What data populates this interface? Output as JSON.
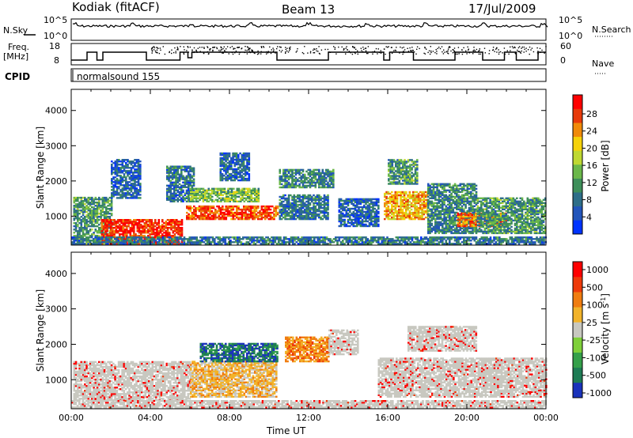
{
  "header": {
    "station": "Kodiak (fitACF)",
    "beam": "Beam 13",
    "date": "17/Jul/2009"
  },
  "top_panels": {
    "nsky_label": "N.Sky",
    "nsearch_label": "N.Search",
    "count_ticks": [
      "10^5",
      "10^0"
    ],
    "freq_label_1": "Freq.",
    "freq_label_2": "[MHz]",
    "freq_ticks": [
      "18",
      "8"
    ],
    "nave_label": "Nave",
    "nave_ticks": [
      "60",
      "0"
    ],
    "cpid_label": "CPID",
    "cpid_value": "normalsound 155"
  },
  "chart_data": [
    {
      "type": "heatmap",
      "name": "power",
      "ylabel": "Slant Range [km]",
      "ylim": [
        180,
        4600
      ],
      "yticks": [
        "4000",
        "3000",
        "2000",
        "1000"
      ],
      "xlim": [
        0,
        24
      ],
      "colorbar_label": "Power [dB]",
      "colorbar_ticks": [
        "28",
        "24",
        "20",
        "16",
        "12",
        "8",
        "4"
      ],
      "colors": [
        "#0033ff",
        "#2255bb",
        "#2e6e88",
        "#3e8f5a",
        "#6bb84a",
        "#bfd832",
        "#f5d20a",
        "#f08a0a",
        "#e83a0a",
        "#ff0000"
      ],
      "echo_regions": [
        {
          "t0": 0.1,
          "t1": 2.0,
          "r0": 200,
          "r1": 1550,
          "level": 0.35
        },
        {
          "t0": 1.5,
          "t1": 5.6,
          "r0": 200,
          "r1": 900,
          "level": 0.9
        },
        {
          "t0": 2.0,
          "t1": 3.5,
          "r0": 1500,
          "r1": 2600,
          "level": 0.2
        },
        {
          "t0": 4.8,
          "t1": 6.2,
          "r0": 1400,
          "r1": 2400,
          "level": 0.25
        },
        {
          "t0": 5.8,
          "t1": 10.4,
          "r0": 900,
          "r1": 1300,
          "level": 0.85
        },
        {
          "t0": 6.0,
          "t1": 9.5,
          "r0": 1400,
          "r1": 1800,
          "level": 0.45
        },
        {
          "t0": 7.5,
          "t1": 9.0,
          "r0": 2000,
          "r1": 2800,
          "level": 0.2
        },
        {
          "t0": 10.5,
          "t1": 13.2,
          "r0": 1800,
          "r1": 2300,
          "level": 0.3
        },
        {
          "t0": 10.5,
          "t1": 13.0,
          "r0": 900,
          "r1": 1600,
          "level": 0.25
        },
        {
          "t0": 13.5,
          "t1": 15.5,
          "r0": 700,
          "r1": 1500,
          "level": 0.2
        },
        {
          "t0": 15.8,
          "t1": 18.0,
          "r0": 900,
          "r1": 1700,
          "level": 0.7
        },
        {
          "t0": 16.0,
          "t1": 17.5,
          "r0": 1900,
          "r1": 2600,
          "level": 0.35
        },
        {
          "t0": 18.0,
          "t1": 20.5,
          "r0": 500,
          "r1": 1900,
          "level": 0.3
        },
        {
          "t0": 19.5,
          "t1": 22.0,
          "r0": 700,
          "r1": 1100,
          "level": 0.8
        },
        {
          "t0": 20.5,
          "t1": 24.0,
          "r0": 500,
          "r1": 1500,
          "level": 0.35
        },
        {
          "t0": 0.0,
          "t1": 24.0,
          "r0": 200,
          "r1": 420,
          "level": 0.25
        }
      ]
    },
    {
      "type": "heatmap",
      "name": "velocity",
      "ylabel": "Slant Range [km]",
      "ylim": [
        180,
        4600
      ],
      "yticks": [
        "4000",
        "3000",
        "2000",
        "1000"
      ],
      "xlim": [
        0,
        24
      ],
      "xlabel": "Time UT",
      "xticks": [
        "00:00",
        "04:00",
        "08:00",
        "12:00",
        "16:00",
        "20:00",
        "00:00"
      ],
      "colorbar_label": "Velocity [m s^-1]",
      "colorbar_ticks": [
        "1000",
        "500",
        "100",
        "25",
        "-25",
        "-100",
        "-500",
        "-1000"
      ],
      "colors": [
        "#1a33bb",
        "#1e7c55",
        "#35a04a",
        "#7fd03a",
        "#c8c8c0",
        "#f2b32a",
        "#f07d10",
        "#ee3a0a",
        "#ff0000"
      ],
      "echo_regions": [
        {
          "t0": 0.1,
          "t1": 6.0,
          "r0": 400,
          "r1": 1500,
          "level": 0.5
        },
        {
          "t0": 6.0,
          "t1": 10.4,
          "r0": 500,
          "r1": 1500,
          "level": 0.6
        },
        {
          "t0": 6.5,
          "t1": 10.4,
          "r0": 1500,
          "r1": 2000,
          "level": 0.15
        },
        {
          "t0": 10.8,
          "t1": 13.0,
          "r0": 1500,
          "r1": 2200,
          "level": 0.7
        },
        {
          "t0": 13.0,
          "t1": 14.5,
          "r0": 1700,
          "r1": 2400,
          "level": 0.5
        },
        {
          "t0": 15.5,
          "t1": 24.0,
          "r0": 500,
          "r1": 1600,
          "level": 0.5
        },
        {
          "t0": 17.0,
          "t1": 20.5,
          "r0": 1800,
          "r1": 2500,
          "level": 0.5
        },
        {
          "t0": 0.0,
          "t1": 24.0,
          "r0": 200,
          "r1": 420,
          "level": 0.5
        }
      ]
    }
  ]
}
